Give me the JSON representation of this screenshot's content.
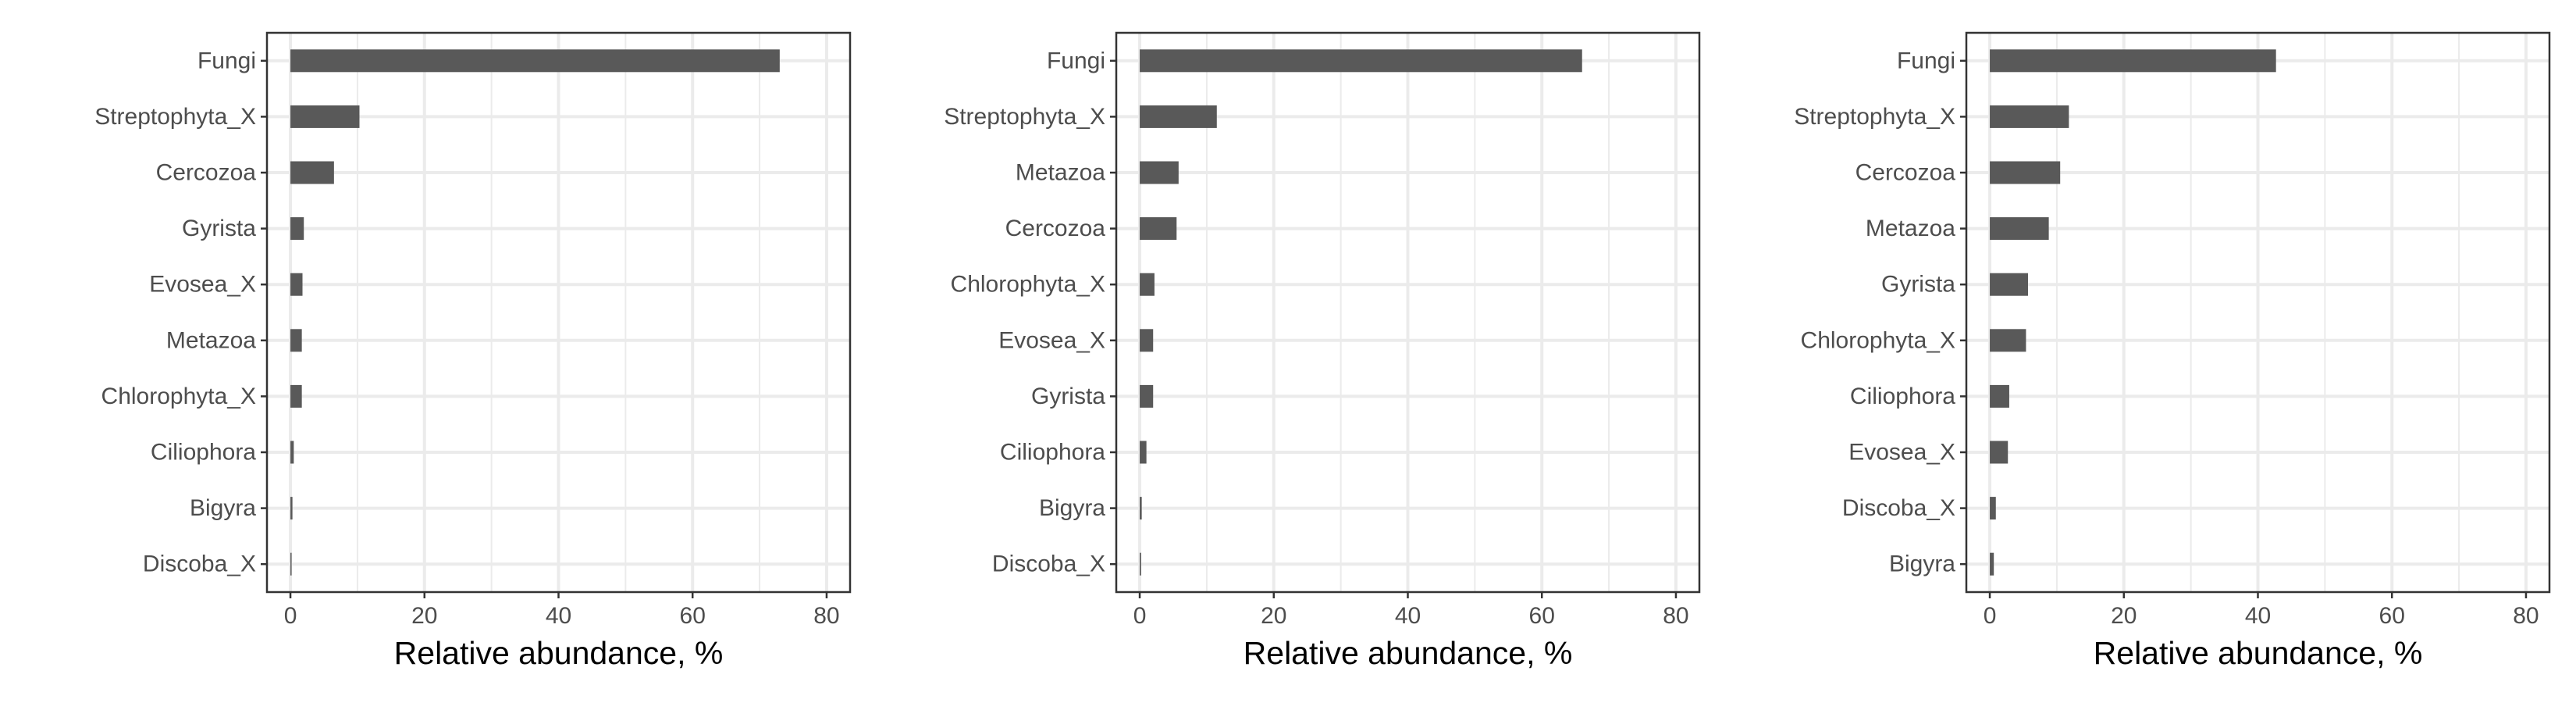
{
  "chart_data": [
    {
      "type": "bar",
      "orientation": "horizontal",
      "categories": [
        "Fungi",
        "Streptophyta_X",
        "Cercozoa",
        "Gyrista",
        "Evosea_X",
        "Metazoa",
        "Chlorophyta_X",
        "Ciliophora",
        "Bigyra",
        "Discoba_X"
      ],
      "values": [
        73,
        10.3,
        6.5,
        2.0,
        1.8,
        1.7,
        1.7,
        0.5,
        0.3,
        0.1
      ],
      "xlabel": "Relative abundance, %",
      "xlim": [
        -3.5,
        83.5
      ],
      "xticks": [
        0,
        20,
        40,
        60,
        80
      ],
      "grid": true,
      "colors": {
        "bar": "#595959",
        "grid": "#ebebeb",
        "panel_border": "#333333"
      }
    },
    {
      "type": "bar",
      "orientation": "horizontal",
      "categories": [
        "Fungi",
        "Streptophyta_X",
        "Metazoa",
        "Cercozoa",
        "Chlorophyta_X",
        "Evosea_X",
        "Gyrista",
        "Ciliophora",
        "Bigyra",
        "Discoba_X"
      ],
      "values": [
        66,
        11.5,
        5.8,
        5.5,
        2.2,
        2.0,
        2.0,
        1.0,
        0.3,
        0.2
      ],
      "xlabel": "Relative abundance, %",
      "xlim": [
        -3.5,
        83.5
      ],
      "xticks": [
        0,
        20,
        40,
        60,
        80
      ],
      "grid": true,
      "colors": {
        "bar": "#595959",
        "grid": "#ebebeb",
        "panel_border": "#333333"
      }
    },
    {
      "type": "bar",
      "orientation": "horizontal",
      "categories": [
        "Fungi",
        "Streptophyta_X",
        "Cercozoa",
        "Metazoa",
        "Gyrista",
        "Chlorophyta_X",
        "Ciliophora",
        "Evosea_X",
        "Discoba_X",
        "Bigyra"
      ],
      "values": [
        42.7,
        11.8,
        10.5,
        8.8,
        5.7,
        5.4,
        2.9,
        2.7,
        0.9,
        0.6
      ],
      "xlabel": "Relative abundance, %",
      "xlim": [
        -3.5,
        83.5
      ],
      "xticks": [
        0,
        20,
        40,
        60,
        80
      ],
      "grid": true,
      "colors": {
        "bar": "#595959",
        "grid": "#ebebeb",
        "panel_border": "#333333"
      }
    }
  ]
}
